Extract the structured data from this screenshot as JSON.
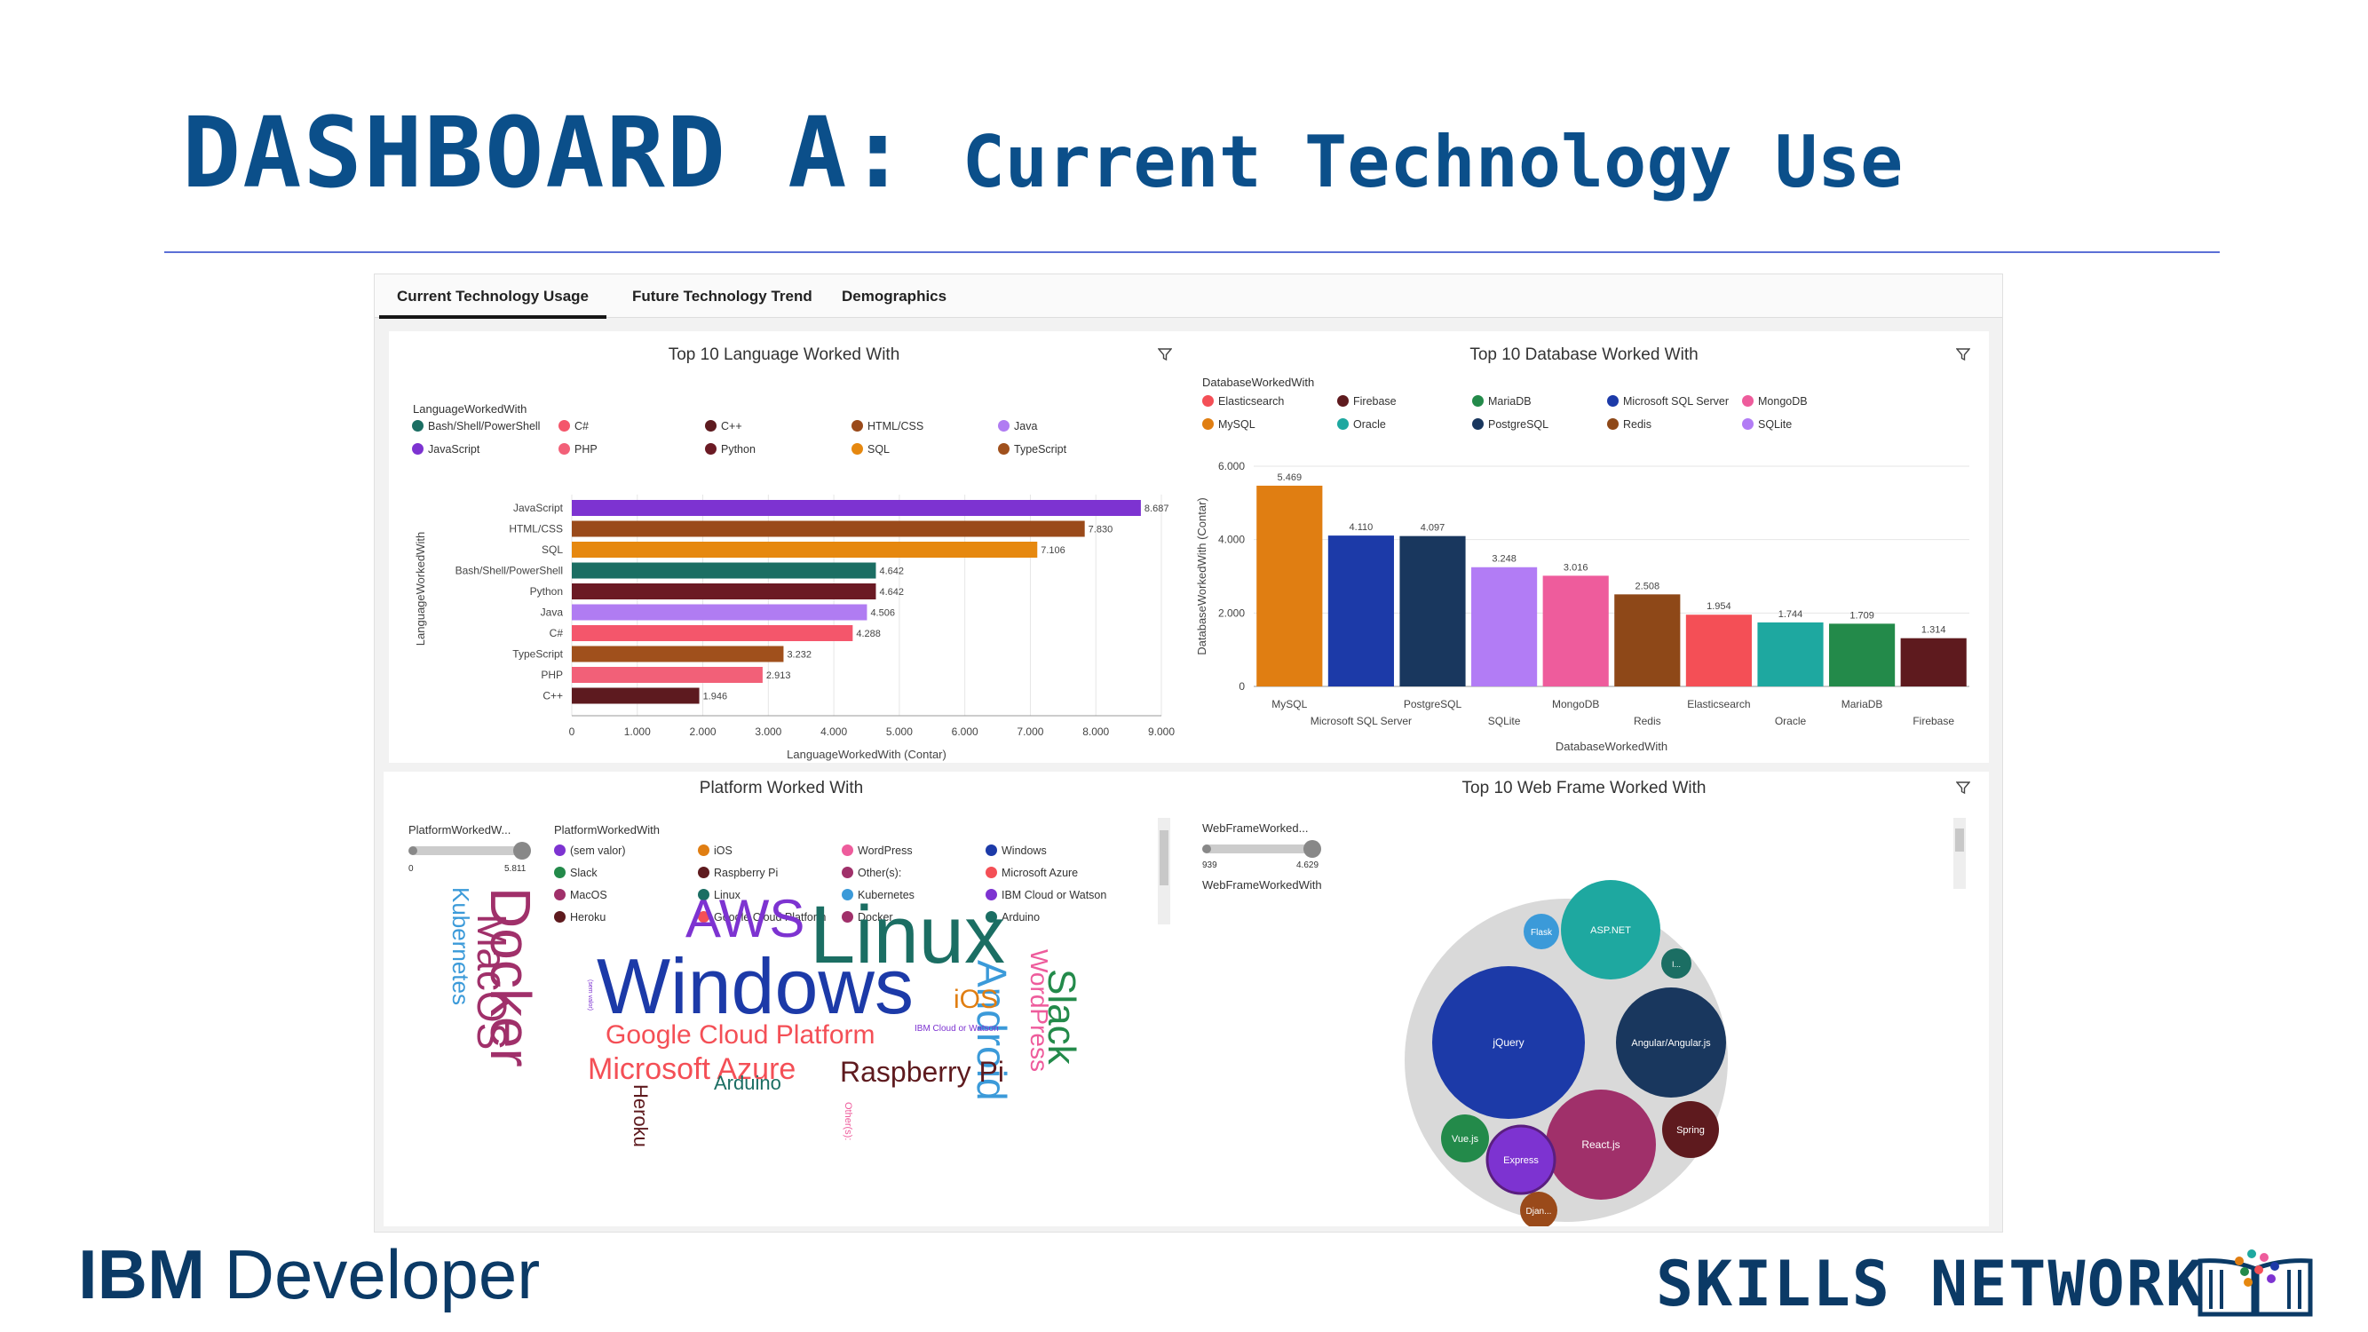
{
  "slide": {
    "title_main": "DASHBOARD A:",
    "title_sub": "Current Technology Use",
    "footer_left_bold": "IBM",
    "footer_left_light": "Developer",
    "footer_right": "SKILLS NETWORK",
    "colors": {
      "title": "#0b4f8a",
      "rule": "#5b6fd6",
      "footer": "#0b3a66"
    }
  },
  "tabs": [
    {
      "label": "Current Technology Usage",
      "active": true
    },
    {
      "label": "Future Technology Trend",
      "active": false
    },
    {
      "label": "Demographics",
      "active": false
    }
  ],
  "panels": {
    "language": {
      "title": "Top 10 Language Worked With",
      "legend_title": "LanguageWorkedWith",
      "legend": [
        {
          "label": "Bash/Shell/PowerShell",
          "color": "#1b6e63"
        },
        {
          "label": "C#",
          "color": "#f4566b"
        },
        {
          "label": "C++",
          "color": "#5d1a1f"
        },
        {
          "label": "HTML/CSS",
          "color": "#9a4a1a"
        },
        {
          "label": "Java",
          "color": "#b07cf2"
        },
        {
          "label": "JavaScript",
          "color": "#7d33d1"
        },
        {
          "label": "PHP",
          "color": "#f26078"
        },
        {
          "label": "Python",
          "color": "#6b1a24"
        },
        {
          "label": "SQL",
          "color": "#e6880f"
        },
        {
          "label": "TypeScript",
          "color": "#a0501c"
        }
      ],
      "y_axis_label": "LanguageWorkedWith",
      "x_axis_label": "LanguageWorkedWith (Contar)"
    },
    "database": {
      "title": "Top 10 Database Worked With",
      "legend_title": "DatabaseWorkedWith",
      "legend": [
        {
          "label": "Elasticsearch",
          "color": "#f44f56"
        },
        {
          "label": "Firebase",
          "color": "#5e1a1e"
        },
        {
          "label": "MariaDB",
          "color": "#238a4a"
        },
        {
          "label": "Microsoft SQL Server",
          "color": "#1c3aa8"
        },
        {
          "label": "MongoDB",
          "color": "#ee5c9c"
        },
        {
          "label": "MySQL",
          "color": "#e07e12"
        },
        {
          "label": "Oracle",
          "color": "#1ea8a0"
        },
        {
          "label": "PostgreSQL",
          "color": "#19375e"
        },
        {
          "label": "Redis",
          "color": "#8e4818"
        },
        {
          "label": "SQLite",
          "color": "#b27cf5"
        }
      ],
      "y_axis_label": "DatabaseWorkedWith (Contar)",
      "x_axis_label": "DatabaseWorkedWith"
    },
    "platform": {
      "title": "Platform Worked With",
      "slider_label": "PlatformWorkedW...",
      "slider_min": "0",
      "slider_max": "5.811",
      "legend_title": "PlatformWorkedWith",
      "legend": [
        {
          "label": "(sem valor)",
          "color": "#7d33d1"
        },
        {
          "label": "iOS",
          "color": "#e07e12"
        },
        {
          "label": "WordPress",
          "color": "#ee5c9c"
        },
        {
          "label": "Windows",
          "color": "#1c3aa8"
        },
        {
          "label": "Slack",
          "color": "#238a4a"
        },
        {
          "label": "Raspberry Pi",
          "color": "#5e1a1e"
        },
        {
          "label": "Other(s):",
          "color": "#a0306a"
        },
        {
          "label": "Microsoft Azure",
          "color": "#f44f56"
        },
        {
          "label": "MacOS",
          "color": "#a0306a"
        },
        {
          "label": "Linux",
          "color": "#1b6e63"
        },
        {
          "label": "Kubernetes",
          "color": "#3b9ad9"
        },
        {
          "label": "IBM Cloud or Watson",
          "color": "#7d33d1"
        },
        {
          "label": "Heroku",
          "color": "#5e1a1e"
        },
        {
          "label": "Google Cloud Platform",
          "color": "#f44f56"
        },
        {
          "label": "Docker",
          "color": "#a0306a"
        },
        {
          "label": "Arduino",
          "color": "#1b6e63"
        }
      ],
      "words": [
        {
          "text": "Linux",
          "color": "#1b6e63"
        },
        {
          "text": "Windows",
          "color": "#1c3aa8"
        },
        {
          "text": "AWS",
          "color": "#7d33d1"
        },
        {
          "text": "Docker",
          "color": "#a0306a"
        },
        {
          "text": "MacOS",
          "color": "#a0306a"
        },
        {
          "text": "Kubernetes",
          "color": "#3b9ad9"
        },
        {
          "text": "Android",
          "color": "#3b9ad9"
        },
        {
          "text": "Slack",
          "color": "#238a4a"
        },
        {
          "text": "WordPress",
          "color": "#ee5c9c"
        },
        {
          "text": "iOS",
          "color": "#e07e12"
        },
        {
          "text": "Google Cloud Platform",
          "color": "#f44f56"
        },
        {
          "text": "Microsoft Azure",
          "color": "#f44f56"
        },
        {
          "text": "Raspberry Pi",
          "color": "#5e1a1e"
        },
        {
          "text": "Arduino",
          "color": "#1b6e63"
        },
        {
          "text": "Heroku",
          "color": "#5e1a1e"
        },
        {
          "text": "IBM Cloud or Watson",
          "color": "#7d33d1"
        },
        {
          "text": "Other(s):",
          "color": "#ee5c9c"
        },
        {
          "text": "(sem valor)",
          "color": "#7d33d1"
        }
      ]
    },
    "webframe": {
      "title": "Top 10 Web Frame Worked With",
      "slider_label": "WebFrameWorked...",
      "slider_min": "939",
      "slider_max": "4.629",
      "legend_title": "WebFrameWorkedWith",
      "bubbles": [
        {
          "label": "jQuery",
          "color": "#1c3aa8"
        },
        {
          "label": "ASP.NET",
          "color": "#1ea8a0"
        },
        {
          "label": "Angular/Angular.js",
          "color": "#19375e"
        },
        {
          "label": "React.js",
          "color": "#a0306a"
        },
        {
          "label": "Express",
          "color": "#7d33d1"
        },
        {
          "label": "Spring",
          "color": "#5e1a1e"
        },
        {
          "label": "Vue.js",
          "color": "#238a4a"
        },
        {
          "label": "Flask",
          "color": "#3b9ad9"
        },
        {
          "label": "Djan...",
          "color": "#9a4a1a"
        },
        {
          "label": "I...",
          "color": "#1b6e63"
        }
      ]
    }
  },
  "chart_data": [
    {
      "type": "bar",
      "orientation": "horizontal",
      "title": "Top 10 Language Worked With",
      "xlabel": "LanguageWorkedWith (Contar)",
      "ylabel": "LanguageWorkedWith",
      "categories": [
        "JavaScript",
        "HTML/CSS",
        "SQL",
        "Bash/Shell/PowerShell",
        "Python",
        "Java",
        "C#",
        "TypeScript",
        "PHP",
        "C++"
      ],
      "values": [
        8687,
        7830,
        7106,
        4642,
        4642,
        4506,
        4288,
        3232,
        2913,
        1946
      ],
      "value_labels": [
        "8.687",
        "7.830",
        "7.106",
        "4.642",
        "4.642",
        "4.506",
        "4.288",
        "3.232",
        "2.913",
        "1.946"
      ],
      "colors": [
        "#7d33d1",
        "#9a4a1a",
        "#e6880f",
        "#1b6e63",
        "#6b1a24",
        "#b07cf2",
        "#f4566b",
        "#a0501c",
        "#f26078",
        "#5d1a1f"
      ],
      "xlim": [
        0,
        9000
      ],
      "xticks": [
        "0",
        "1.000",
        "2.000",
        "3.000",
        "4.000",
        "5.000",
        "6.000",
        "7.000",
        "8.000",
        "9.000"
      ],
      "grid": true
    },
    {
      "type": "bar",
      "orientation": "vertical",
      "title": "Top 10 Database Worked With",
      "xlabel": "DatabaseWorkedWith",
      "ylabel": "DatabaseWorkedWith (Contar)",
      "categories": [
        "MySQL",
        "Microsoft SQL Server",
        "PostgreSQL",
        "SQLite",
        "MongoDB",
        "Redis",
        "Elasticsearch",
        "Oracle",
        "MariaDB",
        "Firebase"
      ],
      "values": [
        5469,
        4110,
        4097,
        3248,
        3016,
        2508,
        1954,
        1744,
        1709,
        1314
      ],
      "value_labels": [
        "5.469",
        "4.110",
        "4.097",
        "3.248",
        "3.016",
        "2.508",
        "1.954",
        "1.744",
        "1.709",
        "1.314"
      ],
      "colors": [
        "#e07e12",
        "#1c3aa8",
        "#19375e",
        "#b27cf5",
        "#ee5c9c",
        "#8e4818",
        "#f44f56",
        "#1ea8a0",
        "#238a4a",
        "#5e1a1e"
      ],
      "ylim": [
        0,
        6000
      ],
      "yticks": [
        "0",
        "2.000",
        "4.000",
        "6.000"
      ],
      "grid": true
    }
  ]
}
